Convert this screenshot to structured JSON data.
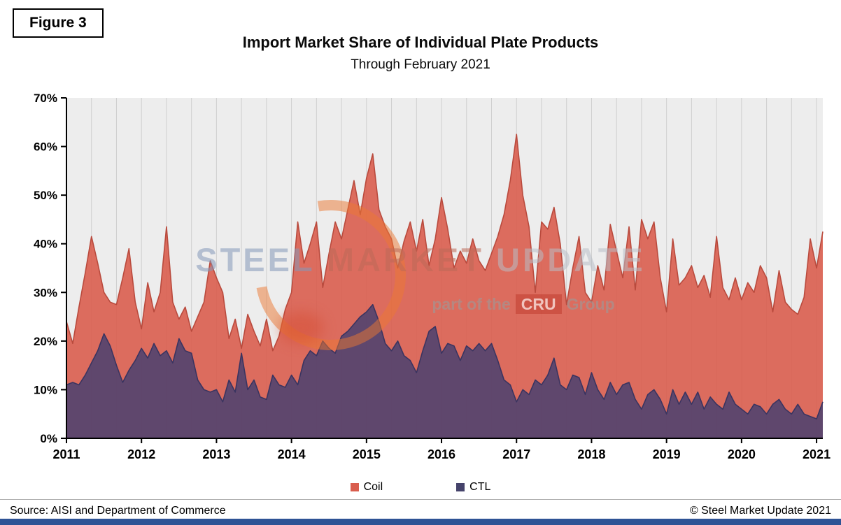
{
  "figure_label": "Figure 3",
  "title": "Import Market Share of Individual Plate Products",
  "subtitle": "Through February 2021",
  "source": "Source: AISI and Department of Commerce",
  "copyright": "© Steel Market Update 2021",
  "watermark": {
    "brand_words": [
      "STEEL",
      "MARKET",
      "UPDATE"
    ],
    "tagline_prefix": "part of the",
    "tagline_box": "CRU",
    "tagline_suffix": "Group"
  },
  "legend": [
    {
      "label": "Coil",
      "color": "#d95d4e"
    },
    {
      "label": "CTL",
      "color": "#45436b"
    }
  ],
  "chart_data": {
    "type": "area",
    "title": "Import Market Share of Individual Plate Products",
    "subtitle": "Through February 2021",
    "x_start": "2011-01",
    "x_end": "2021-02",
    "x_tick_labels": [
      "2011",
      "2012",
      "2013",
      "2014",
      "2015",
      "2016",
      "2017",
      "2018",
      "2019",
      "2020",
      "2021"
    ],
    "y_ticks": [
      "0%",
      "10%",
      "20%",
      "30%",
      "40%",
      "50%",
      "60%",
      "70%"
    ],
    "ylim": [
      0,
      70
    ],
    "grid": "vertical-every-4-months",
    "legend_position": "bottom",
    "plot_background": "#ededed",
    "series": [
      {
        "name": "Coil",
        "fill": "rgba(217,93,78,0.9)",
        "stroke": "#b94a3d",
        "values": [
          24,
          19.5,
          27,
          34,
          41.5,
          36,
          30,
          28,
          27.5,
          33,
          39,
          28,
          22.5,
          32,
          26,
          30,
          43.5,
          28,
          24.5,
          27,
          22,
          25,
          28,
          36.5,
          33,
          30,
          20.5,
          24.5,
          18.5,
          25.5,
          22,
          19,
          24.5,
          18,
          21,
          26.5,
          30,
          44.5,
          36,
          40,
          44.5,
          31,
          38,
          44.5,
          41,
          47,
          53,
          46,
          53.5,
          58.5,
          47,
          43.5,
          41,
          35,
          40.5,
          44.5,
          38.5,
          45,
          35.5,
          41,
          49.5,
          43,
          35,
          38.5,
          36,
          41,
          36.5,
          34.5,
          38,
          41.5,
          46,
          53,
          62.5,
          50,
          43.5,
          30,
          44.5,
          43,
          47.5,
          40,
          27.5,
          35,
          41.5,
          30,
          28,
          35.5,
          30.5,
          44,
          38.5,
          33,
          43.5,
          30.5,
          45,
          41,
          44.5,
          33,
          26,
          41,
          31.5,
          33,
          35.5,
          31,
          33.5,
          29,
          41.5,
          31,
          28.5,
          33,
          28.5,
          32,
          30,
          35.5,
          33,
          26,
          34.5,
          28,
          26.5,
          25.5,
          29,
          41,
          35,
          42.5
        ]
      },
      {
        "name": "CTL",
        "fill": "rgba(73,65,112,0.85)",
        "stroke": "#3a3460",
        "values": [
          11,
          11.5,
          11,
          13,
          15.5,
          18,
          21.5,
          19,
          15,
          11.5,
          14,
          16,
          18.5,
          16.5,
          19.5,
          17,
          18,
          15.5,
          20.5,
          18,
          17.5,
          12,
          10,
          9.5,
          10,
          7.5,
          12,
          9.5,
          17.5,
          10,
          12,
          8.5,
          8,
          13,
          11,
          10.5,
          13,
          11,
          16,
          18,
          17,
          20,
          18.5,
          17.5,
          21,
          22,
          23.5,
          25,
          26,
          27.5,
          24,
          19.5,
          18,
          20,
          17,
          16,
          13.5,
          18,
          22,
          23,
          17.5,
          19.5,
          19,
          16,
          19,
          18,
          19.5,
          18,
          19.5,
          16,
          12,
          11,
          7.5,
          10,
          9,
          12,
          11,
          13,
          16.5,
          11,
          10,
          13,
          12.5,
          9,
          13.5,
          10,
          8,
          11.5,
          9,
          11,
          11.5,
          8,
          6,
          9,
          10,
          8,
          5,
          10,
          7,
          9.5,
          7,
          9.5,
          6,
          8.5,
          7,
          6,
          9.5,
          7,
          6,
          5,
          7,
          6.5,
          5,
          7,
          8,
          6,
          5,
          7,
          5,
          4.5,
          4,
          7.5
        ]
      }
    ]
  }
}
